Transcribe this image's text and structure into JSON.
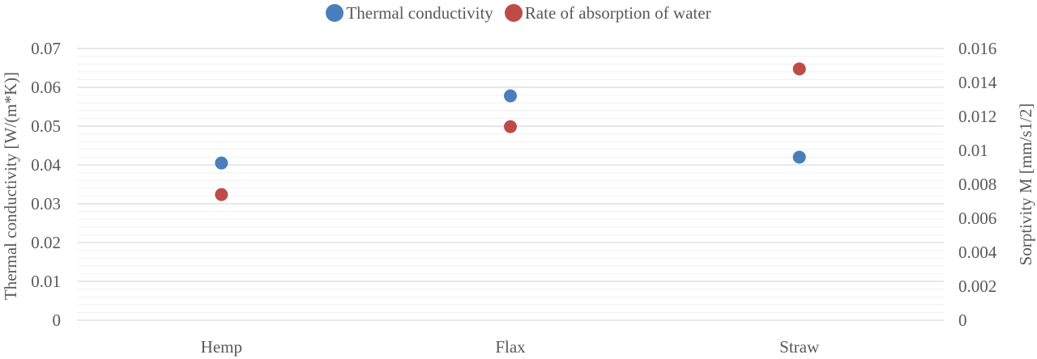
{
  "chart_data": {
    "type": "scatter",
    "categories": [
      "Hemp",
      "Flax",
      "Straw"
    ],
    "series": [
      {
        "name": "Thermal conductivity",
        "axis": "left",
        "color": "#4a7ebb",
        "values": [
          0.0405,
          0.0578,
          0.042
        ]
      },
      {
        "name": "Rate of absorption of water",
        "axis": "right",
        "color": "#be4b48",
        "values": [
          0.0074,
          0.0114,
          0.0148
        ]
      }
    ],
    "ylabel": "Thermal conductivity [W/(m*K)]",
    "y2label": "Sorptivity M [mm/s1/2]",
    "ylim": [
      0,
      0.07
    ],
    "y2lim": [
      0,
      0.016
    ],
    "yticks": [
      "0",
      "0.01",
      "0.02",
      "0.03",
      "0.04",
      "0.05",
      "0.06",
      "0.07"
    ],
    "y2ticks": [
      "0",
      "0.002",
      "0.004",
      "0.006",
      "0.008",
      "0.01",
      "0.012",
      "0.014",
      "0.016"
    ],
    "grid": true,
    "legend_position": "top"
  }
}
